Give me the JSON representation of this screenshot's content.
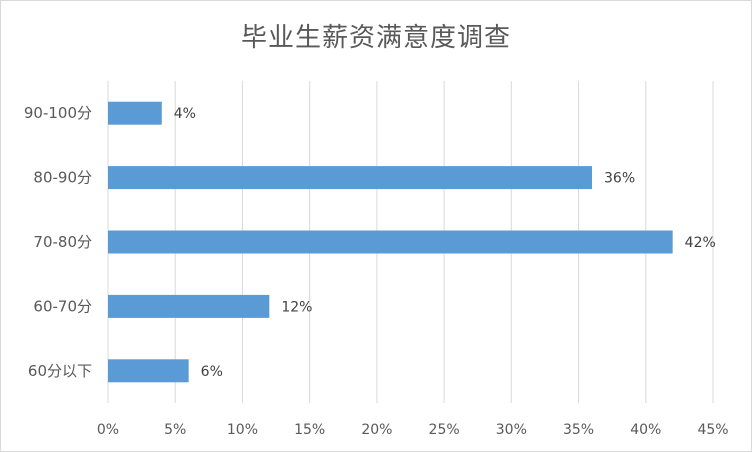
{
  "chart_data": {
    "type": "bar",
    "orientation": "horizontal",
    "title": "毕业生薪资满意度调查",
    "categories": [
      "90-100分",
      "80-90分",
      "70-80分",
      "60-70分",
      "60分以下"
    ],
    "values": [
      4,
      36,
      42,
      12,
      6
    ],
    "data_labels": [
      "4%",
      "36%",
      "42%",
      "12%",
      "6%"
    ],
    "xlim": [
      0,
      45
    ],
    "x_ticks": [
      0,
      5,
      10,
      15,
      20,
      25,
      30,
      35,
      40,
      45
    ],
    "x_tick_labels": [
      "0%",
      "5%",
      "10%",
      "15%",
      "20%",
      "25%",
      "30%",
      "35%",
      "40%",
      "45%"
    ],
    "xlabel": "",
    "ylabel": "",
    "grid": "vertical",
    "legend": "none",
    "bar_color": "#5b9bd5",
    "grid_color": "#d9d9d9"
  }
}
